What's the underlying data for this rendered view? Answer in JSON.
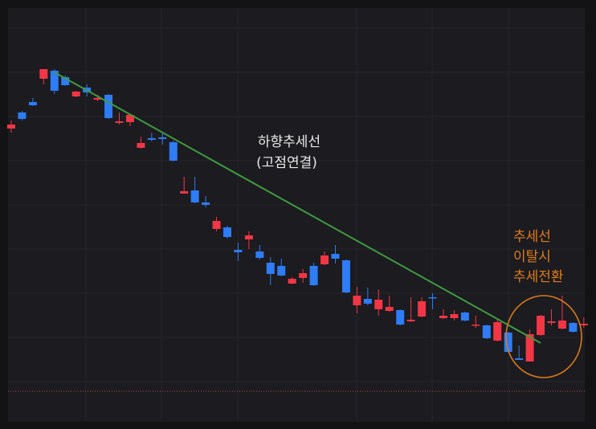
{
  "chart_data": {
    "type": "candlestick",
    "open": [
      374,
      394,
      407,
      436,
      446,
      438,
      414,
      425,
      410,
      416,
      381,
      382,
      350,
      362,
      363,
      357,
      293,
      297,
      282,
      249,
      251,
      223,
      236,
      221,
      207,
      203,
      181,
      188,
      203,
      205,
      218,
      210,
      154,
      162,
      149,
      147,
      148,
      134,
      140,
      164,
      138,
      138,
      145,
      129,
      129,
      110,
      120,
      88,
      84,
      117,
      132,
      125,
      132,
      129
    ],
    "high": [
      384,
      396,
      412,
      448,
      448,
      440,
      421,
      429,
      416,
      417,
      394,
      391,
      364,
      369,
      369,
      359,
      314,
      314,
      290,
      264,
      253,
      232,
      246,
      229,
      214,
      212,
      189,
      199,
      207,
      221,
      229,
      211,
      177,
      176,
      174,
      166,
      149,
      164,
      164,
      169,
      149,
      148,
      146,
      141,
      130,
      136,
      121,
      104,
      124,
      142,
      149,
      166,
      133,
      139
    ],
    "low": [
      369,
      384,
      402,
      429,
      417,
      427,
      413,
      414,
      408,
      386,
      379,
      377,
      349,
      358,
      354,
      333,
      293,
      281,
      276,
      246,
      237,
      209,
      224,
      211,
      179,
      190,
      180,
      182,
      178,
      204,
      206,
      169,
      144,
      154,
      141,
      146,
      129,
      133,
      139,
      149,
      137,
      135,
      134,
      126,
      112,
      109,
      95,
      86,
      84,
      116,
      129,
      124,
      120,
      126
    ],
    "close": [
      379,
      386,
      403,
      448,
      421,
      428,
      420,
      419,
      412,
      387,
      383,
      391,
      356,
      360,
      361,
      334,
      296,
      282,
      279,
      259,
      239,
      220,
      241,
      213,
      193,
      191,
      187,
      194,
      179,
      216,
      212,
      170,
      166,
      156,
      161,
      152,
      130,
      136,
      159,
      163,
      141,
      143,
      135,
      130,
      113,
      133,
      96,
      86,
      118,
      141,
      134,
      135,
      121,
      131
    ],
    "up_color": "#f23645",
    "down_color": "#2e7cf6",
    "ylim": [
      9,
      524
    ],
    "grid": true,
    "trendline": {
      "start": [
        4,
        444
      ],
      "end": [
        49,
        107
      ],
      "color": "#3f9b3f"
    },
    "reference_line": {
      "value": 47,
      "color": "#b8444a"
    },
    "annotations": {
      "downtrend": [
        "하향추세선",
        "(고점연결)"
      ],
      "breakout": [
        "추세선",
        "이탈시",
        "추세전환"
      ]
    },
    "annotation_colors": {
      "downtrend": "#e8e8e8",
      "breakout": "#e07b1a"
    }
  }
}
